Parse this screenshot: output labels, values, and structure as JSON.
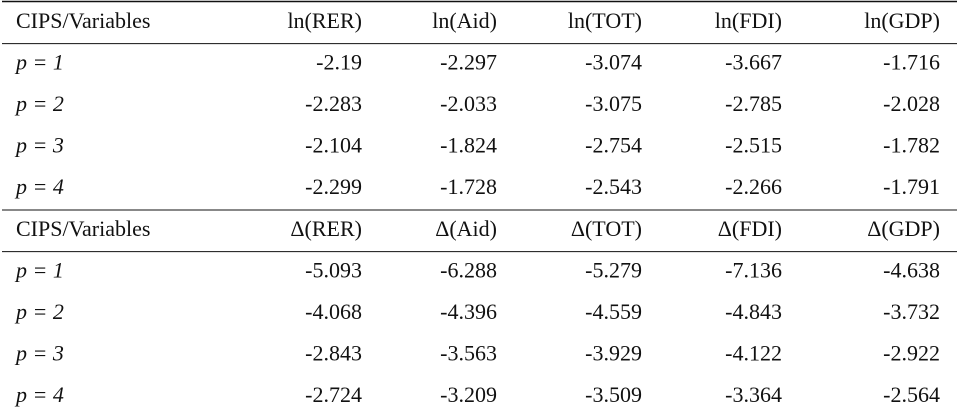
{
  "table": {
    "panels": [
      {
        "header": [
          "CIPS/Variables",
          "ln(RER)",
          "ln(Aid)",
          "ln(TOT)",
          "ln(FDI)",
          "ln(GDP)"
        ],
        "rows": [
          [
            "p = 1",
            -2.19,
            -2.297,
            -3.074,
            -3.667,
            -1.716
          ],
          [
            "p = 2",
            -2.283,
            -2.033,
            -3.075,
            -2.785,
            -2.028
          ],
          [
            "p = 3",
            -2.104,
            -1.824,
            -2.754,
            -2.515,
            -1.782
          ],
          [
            "p = 4",
            -2.299,
            -1.728,
            -2.543,
            -2.266,
            -1.791
          ]
        ]
      },
      {
        "header": [
          "CIPS/Variables",
          "Δ(RER)",
          "Δ(Aid)",
          "Δ(TOT)",
          "Δ(FDI)",
          "Δ(GDP)"
        ],
        "rows": [
          [
            "p = 1",
            -5.093,
            -6.288,
            -5.279,
            -7.136,
            -4.638
          ],
          [
            "p = 2",
            -4.068,
            -4.396,
            -4.559,
            -4.843,
            -3.732
          ],
          [
            "p = 3",
            -2.843,
            -3.563,
            -3.929,
            -4.122,
            -2.922
          ],
          [
            "p = 4",
            -2.724,
            -3.209,
            -3.509,
            -3.364,
            -2.564
          ]
        ]
      }
    ]
  }
}
